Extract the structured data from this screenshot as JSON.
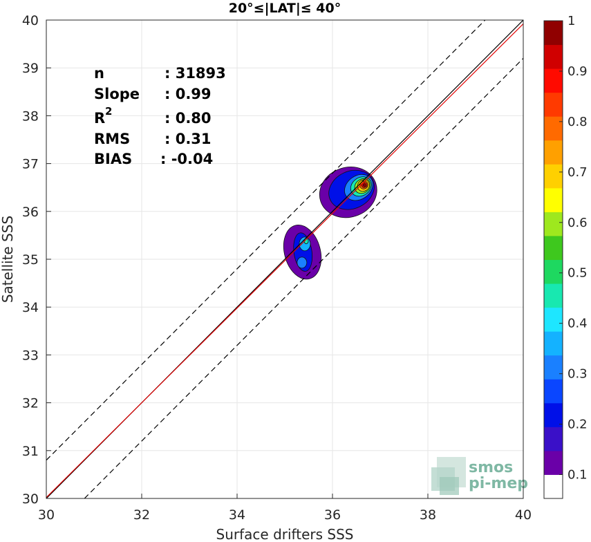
{
  "chart_data": {
    "type": "heatmap",
    "title": "20°≤|LAT|≤ 40°",
    "xlabel": "Surface drifters SSS",
    "ylabel": "Satellite SSS",
    "xlim": [
      30,
      40
    ],
    "ylim": [
      30,
      40
    ],
    "xticks": [
      "30",
      "32",
      "34",
      "36",
      "38",
      "40"
    ],
    "yticks": [
      "30",
      "31",
      "32",
      "33",
      "34",
      "35",
      "36",
      "37",
      "38",
      "39",
      "40"
    ],
    "grid": true,
    "stats": {
      "n_label": "n",
      "n_value": ": 31893",
      "slope_label": "Slope",
      "slope_value": ": 0.99",
      "r2_label": "R",
      "r2_sup": "2",
      "r2_value": ": 0.80",
      "rms_label": "RMS",
      "rms_value": ": 0.31",
      "bias_label": "BIAS",
      "bias_value": ": -0.04"
    },
    "lines": [
      {
        "kind": "one-to-one",
        "slope": 1,
        "intercept": 0,
        "color": "#000000",
        "style": "solid"
      },
      {
        "kind": "fit",
        "slope": 0.99,
        "intercept": 0.32,
        "color": "#e00000",
        "style": "solid"
      },
      {
        "kind": "upper-bound",
        "slope": 1,
        "intercept": 0.8,
        "color": "#000000",
        "style": "dashed"
      },
      {
        "kind": "lower-bound",
        "slope": 1,
        "intercept": -0.8,
        "color": "#000000",
        "style": "dashed"
      }
    ],
    "density_clusters": [
      {
        "center": [
          36.6,
          36.5
        ],
        "peak": 1.0
      },
      {
        "center": [
          35.4,
          35.2
        ],
        "peak": 0.4
      }
    ],
    "colorbar": {
      "range": [
        0,
        1
      ],
      "ticks": [
        "0.1",
        "0.2",
        "0.3",
        "0.4",
        "0.5",
        "0.6",
        "0.7",
        "0.8",
        "0.9",
        "1"
      ],
      "colors": [
        "#ffffff",
        "#6a00a8",
        "#3a10c8",
        "#0010e8",
        "#0a46ff",
        "#1a80ff",
        "#14b2ff",
        "#1ee6ff",
        "#18e8b0",
        "#1ed860",
        "#3ec81e",
        "#9ee81e",
        "#ffff00",
        "#ffd000",
        "#ffa000",
        "#ff6a00",
        "#ff3a00",
        "#ff0a00",
        "#d00000",
        "#900000"
      ]
    }
  },
  "logo": {
    "line1": "smos",
    "line2": "pi-mep"
  }
}
